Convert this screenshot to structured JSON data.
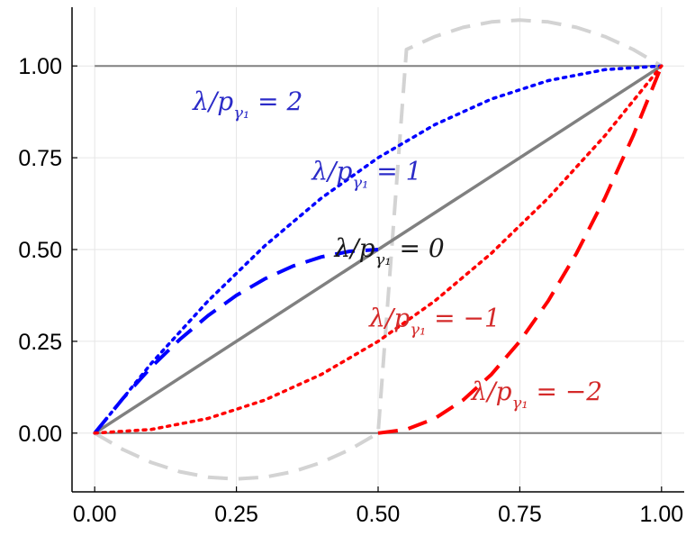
{
  "chart_data": {
    "type": "line",
    "xlim": [
      -0.04,
      1.04
    ],
    "ylim": [
      -0.16,
      1.16
    ],
    "xticks": [
      0.0,
      0.25,
      0.5,
      0.75,
      1.0
    ],
    "xtick_labels": [
      "0.00",
      "0.25",
      "0.50",
      "0.75",
      "1.00"
    ],
    "yticks": [
      0.0,
      0.25,
      0.5,
      0.75,
      1.0
    ],
    "ytick_labels": [
      "0.00",
      "0.25",
      "0.50",
      "0.75",
      "1.00"
    ],
    "grid": true,
    "xlabel": "",
    "ylabel": "",
    "series": [
      {
        "color": "#d3d3d3",
        "style": "dashed",
        "width": 4,
        "x": [
          0,
          0.05,
          0.1,
          0.15,
          0.2,
          0.25,
          0.3,
          0.35,
          0.4,
          0.45,
          0.5,
          0.55,
          0.6,
          0.65,
          0.7,
          0.75,
          0.8,
          0.85,
          0.9,
          0.95,
          1.0
        ],
        "y": [
          0,
          -0.045,
          -0.08,
          -0.105,
          -0.12,
          -0.125,
          -0.12,
          -0.105,
          -0.08,
          -0.045,
          0,
          1.045,
          1.08,
          1.105,
          1.12,
          1.125,
          1.12,
          1.105,
          1.08,
          1.045,
          1.0
        ]
      },
      {
        "color": "#808080",
        "style": "solid",
        "width": 2,
        "x": [
          0,
          1
        ],
        "y": [
          1,
          1
        ]
      },
      {
        "color": "#808080",
        "style": "solid",
        "width": 2,
        "x": [
          0,
          1
        ],
        "y": [
          0,
          0
        ]
      },
      {
        "color": "#808080",
        "style": "solid",
        "width": 3.5,
        "x": [
          0,
          1
        ],
        "y": [
          0,
          1
        ]
      },
      {
        "color": "#0000ff",
        "style": "dashed",
        "width": 4,
        "x": [
          0,
          0.05,
          0.1,
          0.15,
          0.2,
          0.25,
          0.3,
          0.35,
          0.4,
          0.45,
          0.5
        ],
        "y": [
          0,
          0.095,
          0.18,
          0.255,
          0.32,
          0.375,
          0.42,
          0.455,
          0.48,
          0.495,
          0.5
        ],
        "note_scale": 2
      },
      {
        "color": "#0000ff",
        "style": "dotted",
        "width": 3.5,
        "x": [
          0,
          0.1,
          0.2,
          0.3,
          0.4,
          0.5,
          0.6,
          0.7,
          0.8,
          0.9,
          1.0
        ],
        "y": [
          0,
          0.19,
          0.36,
          0.51,
          0.64,
          0.75,
          0.84,
          0.91,
          0.96,
          0.99,
          1.0
        ]
      },
      {
        "color": "#ff0000",
        "style": "dotted",
        "width": 3.5,
        "x": [
          0,
          0.1,
          0.2,
          0.3,
          0.4,
          0.5,
          0.6,
          0.7,
          0.8,
          0.9,
          1.0
        ],
        "y": [
          0,
          0.01,
          0.04,
          0.09,
          0.16,
          0.25,
          0.36,
          0.49,
          0.64,
          0.81,
          1.0
        ]
      },
      {
        "color": "#ff0000",
        "style": "dashed",
        "width": 4,
        "x": [
          0.5,
          0.55,
          0.6,
          0.65,
          0.7,
          0.75,
          0.8,
          0.85,
          0.9,
          0.95,
          1.0
        ],
        "y": [
          0,
          0.01,
          0.04,
          0.09,
          0.16,
          0.25,
          0.36,
          0.49,
          0.64,
          0.81,
          1.0
        ]
      }
    ],
    "annotations": [
      {
        "text": "λ/p",
        "sub": "γ₁",
        "rest": " = 2",
        "x": 0.27,
        "y": 0.88,
        "color": "#2b2bc8"
      },
      {
        "text": "λ/p",
        "sub": "γ₁",
        "rest": " = 1",
        "x": 0.48,
        "y": 0.69,
        "color": "#2b2bc8"
      },
      {
        "text": "λ/p",
        "sub": "γ₁",
        "rest": " = 0",
        "x": 0.52,
        "y": 0.48,
        "color": "#1a1a1a"
      },
      {
        "text": "λ/p",
        "sub": "γ₁",
        "rest": " = −1",
        "x": 0.6,
        "y": 0.29,
        "color": "#d42a2a"
      },
      {
        "text": "λ/p",
        "sub": "γ₁",
        "rest": " = −2",
        "x": 0.78,
        "y": 0.09,
        "color": "#d42a2a"
      }
    ]
  }
}
